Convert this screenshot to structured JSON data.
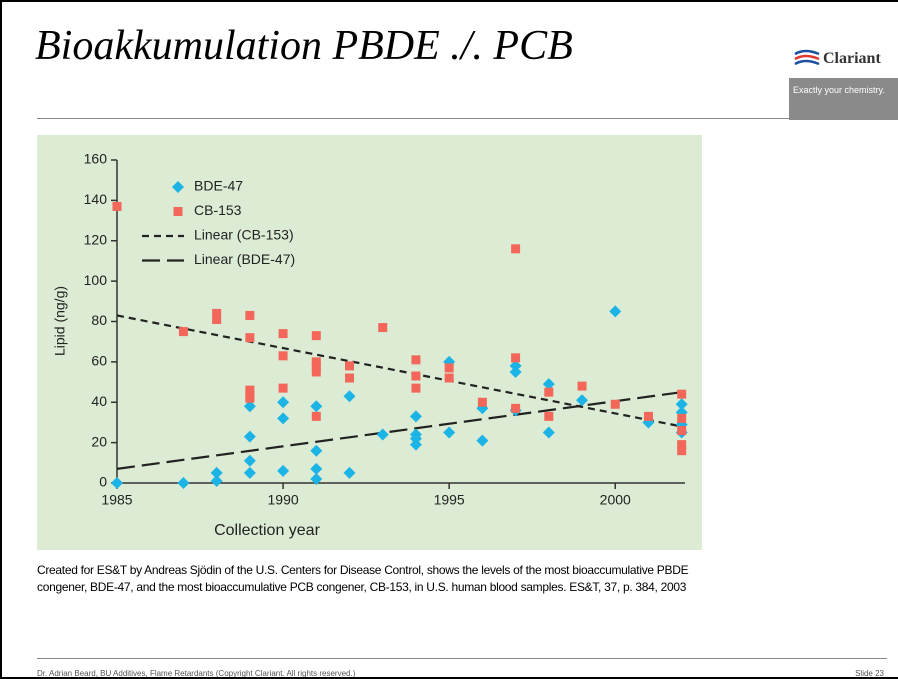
{
  "slide": {
    "title": "Bioakkumulation PBDE ./. PCB",
    "logo": "Clariant",
    "tagline": "Exactly your chemistry.",
    "caption": "Created for ES&T by Andreas Sjödin of the U.S. Centers for Disease Control, shows the levels of the most bioaccumulative PBDE congener, BDE-47, and the most bioaccumulative PCB congener, CB-153, in U.S. human blood samples. ES&T, 37, p. 384, 2003",
    "footer": "Dr. Adrian Beard, BU Additives, Flame Retardants (Copyright Clariant. All rights reserved.)",
    "slide_number": "Slide 23"
  },
  "chart_data": {
    "type": "scatter",
    "xlabel": "Collection year",
    "ylabel": "Lipid (ng/g)",
    "xlim": [
      1985,
      2002.1
    ],
    "xticks": [
      1985,
      1990,
      1995,
      2000
    ],
    "ylim": [
      0,
      160
    ],
    "yticks": [
      0,
      20,
      40,
      60,
      80,
      100,
      120,
      140,
      160
    ],
    "grid": false,
    "legend": "upper left",
    "series": [
      {
        "name": "BDE-47",
        "color": "#1cb4e6",
        "marker": "diamond",
        "x": [
          1985,
          1987,
          1988,
          1988,
          1989,
          1989,
          1989,
          1989,
          1990,
          1990,
          1990,
          1991,
          1991,
          1991,
          1991,
          1992,
          1992,
          1993,
          1994,
          1994,
          1994,
          1994,
          1995,
          1995,
          1996,
          1996,
          1997,
          1997,
          1997,
          1998,
          1998,
          1999,
          2000,
          2001,
          2002,
          2002,
          2002,
          2002
        ],
        "values": [
          0,
          0,
          5,
          1,
          38,
          23,
          11,
          5,
          40,
          32,
          6,
          38,
          16,
          7,
          2,
          43,
          5,
          24,
          33,
          24,
          22,
          19,
          60,
          25,
          37,
          21,
          58,
          55,
          36,
          49,
          25,
          41,
          85,
          30,
          39,
          35,
          29,
          25
        ]
      },
      {
        "name": "CB-153",
        "color": "#f2675a",
        "marker": "square",
        "x": [
          1985,
          1987,
          1988,
          1988,
          1989,
          1989,
          1989,
          1989,
          1989,
          1990,
          1990,
          1990,
          1991,
          1991,
          1991,
          1991,
          1991,
          1992,
          1992,
          1993,
          1994,
          1994,
          1994,
          1995,
          1995,
          1996,
          1997,
          1997,
          1997,
          1998,
          1998,
          1999,
          2000,
          2001,
          2002,
          2002,
          2002,
          2002,
          2002
        ],
        "values": [
          137,
          75,
          84,
          81,
          83,
          72,
          46,
          44,
          42,
          74,
          63,
          47,
          73,
          60,
          58,
          55,
          33,
          58,
          52,
          77,
          61,
          53,
          47,
          57,
          52,
          40,
          116,
          62,
          37,
          45,
          33,
          48,
          39,
          33,
          44,
          32,
          26,
          19,
          16
        ]
      },
      {
        "name": "Linear (CB-153)",
        "color": "#222222",
        "line": "short-dash",
        "x": [
          1985,
          2002
        ],
        "values": [
          83,
          28
        ]
      },
      {
        "name": "Linear (BDE-47)",
        "color": "#222222",
        "line": "long-dash",
        "x": [
          1985,
          2002
        ],
        "values": [
          7,
          45
        ]
      }
    ]
  }
}
